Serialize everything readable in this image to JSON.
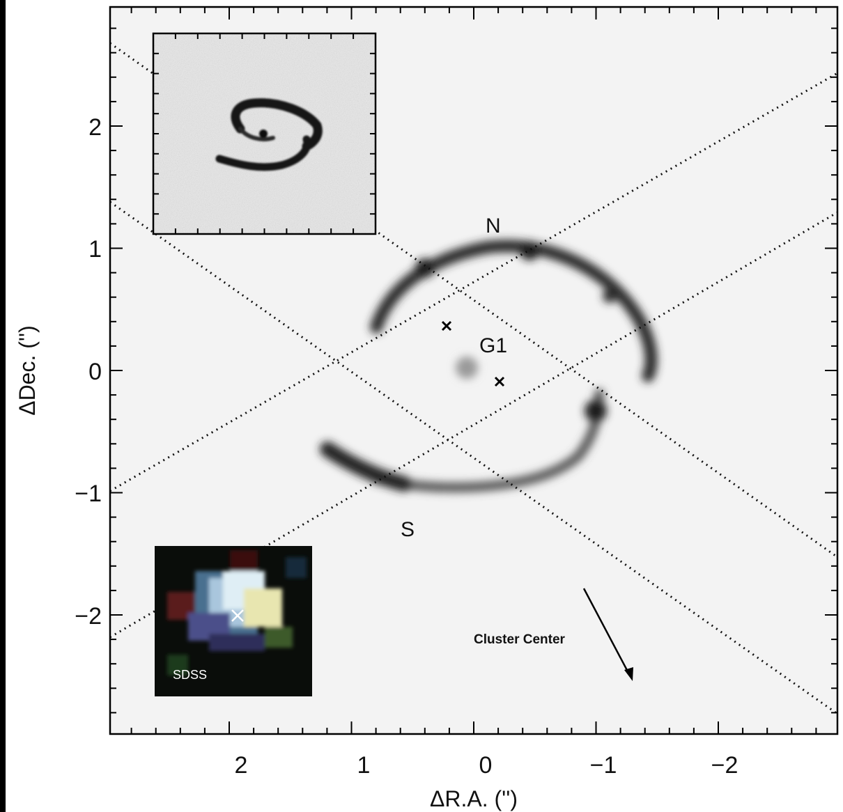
{
  "figure": {
    "x_axis": {
      "label": "ΔR.A. ('')",
      "ticks": [
        {
          "value": 2,
          "label": "2"
        },
        {
          "value": 1,
          "label": "1"
        },
        {
          "value": 0,
          "label": "0"
        },
        {
          "value": -1,
          "label": "−1"
        },
        {
          "value": -2,
          "label": "−2"
        }
      ]
    },
    "y_axis": {
      "label": "ΔDec. ('')",
      "ticks": [
        {
          "value": 2,
          "label": "2"
        },
        {
          "value": 1,
          "label": "1"
        },
        {
          "value": 0,
          "label": "0"
        },
        {
          "value": -1,
          "label": "−1"
        },
        {
          "value": -2,
          "label": "−2"
        }
      ]
    },
    "annotations": {
      "north": "N",
      "south": "S",
      "galaxy": "G1",
      "cluster": "Cluster Center",
      "inset_sdss": "SDSS"
    },
    "colors": {
      "background": "#f2f2f2",
      "ring": "#1a1a1a",
      "frame": "#000000",
      "sdss_cross": "#ffffff"
    }
  }
}
